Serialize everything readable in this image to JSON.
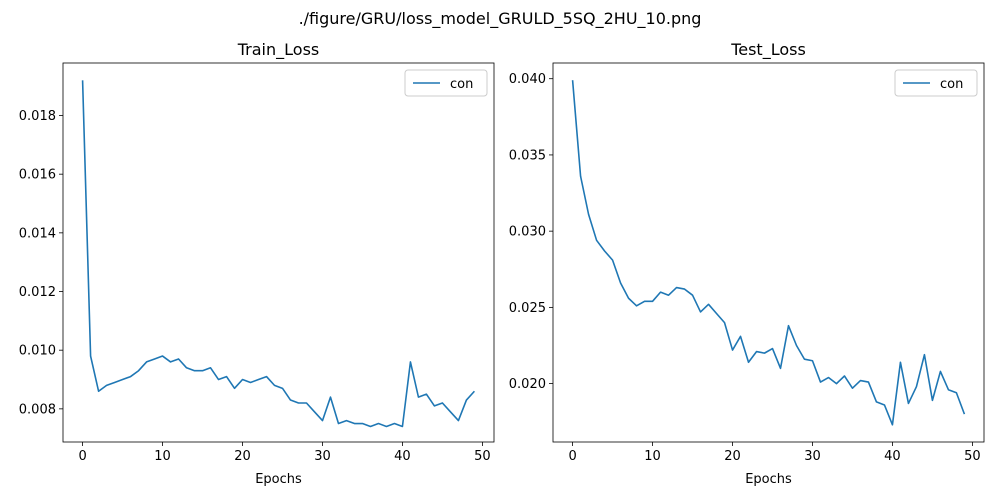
{
  "figure": {
    "suptitle": "./figure/GRU/loss_model_GRULD_5SQ_2HU_10.png"
  },
  "chart_data": [
    {
      "type": "line",
      "title": "Train_Loss",
      "xlabel": "Epochs",
      "ylabel": "",
      "x": [
        0,
        1,
        2,
        3,
        4,
        5,
        6,
        7,
        8,
        9,
        10,
        11,
        12,
        13,
        14,
        15,
        16,
        17,
        18,
        19,
        20,
        21,
        22,
        23,
        24,
        25,
        26,
        27,
        28,
        29,
        30,
        31,
        32,
        33,
        34,
        35,
        36,
        37,
        38,
        39,
        40,
        41,
        42,
        43,
        44,
        45,
        46,
        47,
        48,
        49
      ],
      "series": [
        {
          "name": "con",
          "color": "#1f77b4",
          "values": [
            0.0192,
            0.0098,
            0.0086,
            0.0088,
            0.0089,
            0.009,
            0.0091,
            0.0093,
            0.0096,
            0.0097,
            0.0098,
            0.0096,
            0.0097,
            0.0094,
            0.0093,
            0.0093,
            0.0094,
            0.009,
            0.0091,
            0.0087,
            0.009,
            0.0089,
            0.009,
            0.0091,
            0.0088,
            0.0087,
            0.0083,
            0.0082,
            0.0082,
            0.0079,
            0.0076,
            0.0084,
            0.0075,
            0.0076,
            0.0075,
            0.0075,
            0.0074,
            0.0075,
            0.0074,
            0.0075,
            0.0074,
            0.0096,
            0.0084,
            0.0085,
            0.0081,
            0.0082,
            0.0079,
            0.0076,
            0.0083,
            0.0086
          ]
        }
      ],
      "xlim": [
        -2.45,
        51.45
      ],
      "ylim": [
        0.00687,
        0.01979
      ],
      "xticks": [
        0,
        10,
        20,
        30,
        40,
        50
      ],
      "yticks": [
        0.008,
        0.01,
        0.012,
        0.014,
        0.016,
        0.018
      ],
      "ytick_labels": [
        "0.008",
        "0.010",
        "0.012",
        "0.014",
        "0.016",
        "0.018"
      ],
      "grid": false,
      "legend": "upper right"
    },
    {
      "type": "line",
      "title": "Test_Loss",
      "xlabel": "Epochs",
      "ylabel": "",
      "x": [
        0,
        1,
        2,
        3,
        4,
        5,
        6,
        7,
        8,
        9,
        10,
        11,
        12,
        13,
        14,
        15,
        16,
        17,
        18,
        19,
        20,
        21,
        22,
        23,
        24,
        25,
        26,
        27,
        28,
        29,
        30,
        31,
        32,
        33,
        34,
        35,
        36,
        37,
        38,
        39,
        40,
        41,
        42,
        43,
        44,
        45,
        46,
        47,
        48,
        49
      ],
      "series": [
        {
          "name": "con",
          "color": "#1f77b4",
          "values": [
            0.0399,
            0.0336,
            0.0311,
            0.0294,
            0.0287,
            0.0281,
            0.0266,
            0.0256,
            0.0251,
            0.0254,
            0.0254,
            0.026,
            0.0258,
            0.0263,
            0.0262,
            0.0258,
            0.0247,
            0.0252,
            0.0246,
            0.024,
            0.0222,
            0.0231,
            0.0214,
            0.0221,
            0.022,
            0.0223,
            0.021,
            0.0238,
            0.0225,
            0.0216,
            0.0215,
            0.0201,
            0.0204,
            0.02,
            0.0205,
            0.0197,
            0.0202,
            0.0201,
            0.0188,
            0.0186,
            0.0173,
            0.0214,
            0.0187,
            0.0198,
            0.0219,
            0.0189,
            0.0208,
            0.0196,
            0.0194,
            0.018
          ]
        }
      ],
      "xlim": [
        -2.45,
        51.45
      ],
      "ylim": [
        0.01617,
        0.04103
      ],
      "xticks": [
        0,
        10,
        20,
        30,
        40,
        50
      ],
      "yticks": [
        0.02,
        0.025,
        0.03,
        0.035,
        0.04
      ],
      "ytick_labels": [
        "0.020",
        "0.025",
        "0.030",
        "0.035",
        "0.040"
      ],
      "grid": false,
      "legend": "upper right"
    }
  ]
}
